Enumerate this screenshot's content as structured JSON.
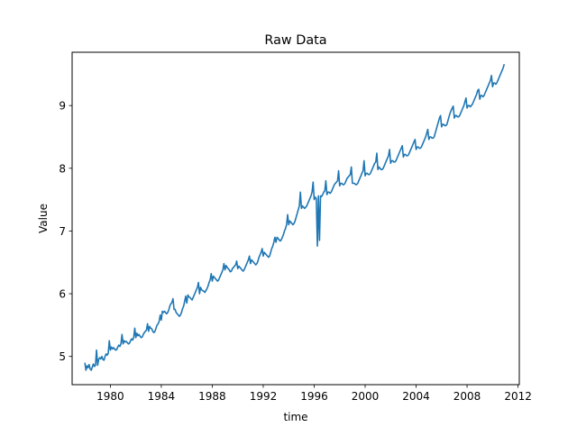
{
  "chart_data": {
    "type": "line",
    "title": "Raw Data",
    "xlabel": "time",
    "ylabel": "Value",
    "xlim": [
      1977.0,
      2012.1
    ],
    "ylim": [
      4.55,
      9.85
    ],
    "x_ticks": [
      1980,
      1984,
      1988,
      1992,
      1996,
      2000,
      2004,
      2008,
      2012
    ],
    "x_tick_labels": [
      "1980",
      "1984",
      "1988",
      "1992",
      "1996",
      "2000",
      "2004",
      "2008",
      "2012"
    ],
    "y_ticks": [
      5,
      6,
      7,
      8,
      9
    ],
    "y_tick_labels": [
      "5",
      "6",
      "7",
      "8",
      "9"
    ],
    "grid": false,
    "legend": "none",
    "x_unit": "year",
    "series": [
      {
        "color": "#1f77b4",
        "x_start": 1978.0,
        "x_step": 0.083333,
        "values": [
          4.9,
          4.78,
          4.85,
          4.82,
          4.87,
          4.8,
          4.78,
          4.83,
          4.88,
          4.84,
          4.86,
          5.1,
          4.86,
          4.95,
          4.98,
          4.96,
          5.0,
          4.95,
          4.94,
          5.0,
          5.04,
          5.02,
          5.05,
          5.25,
          5.1,
          5.15,
          5.12,
          5.14,
          5.12,
          5.1,
          5.11,
          5.15,
          5.18,
          5.16,
          5.2,
          5.35,
          5.2,
          5.25,
          5.23,
          5.24,
          5.22,
          5.2,
          5.21,
          5.25,
          5.28,
          5.26,
          5.3,
          5.45,
          5.3,
          5.37,
          5.33,
          5.35,
          5.32,
          5.3,
          5.31,
          5.35,
          5.38,
          5.4,
          5.42,
          5.52,
          5.4,
          5.48,
          5.45,
          5.44,
          5.4,
          5.38,
          5.4,
          5.45,
          5.5,
          5.52,
          5.56,
          5.66,
          5.58,
          5.72,
          5.7,
          5.72,
          5.7,
          5.68,
          5.7,
          5.74,
          5.8,
          5.84,
          5.86,
          5.92,
          5.75,
          5.75,
          5.7,
          5.68,
          5.66,
          5.64,
          5.66,
          5.7,
          5.76,
          5.8,
          5.88,
          5.96,
          5.85,
          5.98,
          5.95,
          5.94,
          5.92,
          5.9,
          5.94,
          5.98,
          6.02,
          6.06,
          6.1,
          6.18,
          6.0,
          6.1,
          6.06,
          6.05,
          6.04,
          6.02,
          6.05,
          6.08,
          6.12,
          6.18,
          6.22,
          6.32,
          6.2,
          6.28,
          6.26,
          6.24,
          6.22,
          6.2,
          6.22,
          6.26,
          6.3,
          6.34,
          6.38,
          6.48,
          6.38,
          6.45,
          6.42,
          6.4,
          6.38,
          6.35,
          6.36,
          6.4,
          6.42,
          6.44,
          6.46,
          6.52,
          6.4,
          6.44,
          6.42,
          6.4,
          6.38,
          6.36,
          6.38,
          6.42,
          6.46,
          6.5,
          6.54,
          6.6,
          6.48,
          6.54,
          6.52,
          6.5,
          6.48,
          6.46,
          6.48,
          6.52,
          6.58,
          6.62,
          6.66,
          6.72,
          6.6,
          6.66,
          6.64,
          6.62,
          6.6,
          6.58,
          6.6,
          6.66,
          6.72,
          6.76,
          6.82,
          6.9,
          6.82,
          6.9,
          6.88,
          6.86,
          6.84,
          6.86,
          6.9,
          6.94,
          7.0,
          7.04,
          7.1,
          7.26,
          7.1,
          7.16,
          7.14,
          7.12,
          7.1,
          7.12,
          7.16,
          7.22,
          7.28,
          7.34,
          7.4,
          7.62,
          7.36,
          7.4,
          7.38,
          7.36,
          7.38,
          7.4,
          7.44,
          7.48,
          7.52,
          7.56,
          7.62,
          7.78,
          7.5,
          7.54,
          7.52,
          6.76,
          7.56,
          6.85,
          7.56,
          7.55,
          7.58,
          7.62,
          7.64,
          7.8,
          7.58,
          7.62,
          7.62,
          7.6,
          7.62,
          7.66,
          7.7,
          7.74,
          7.76,
          7.78,
          7.8,
          7.96,
          7.72,
          7.76,
          7.76,
          7.74,
          7.74,
          7.76,
          7.8,
          7.84,
          7.86,
          7.88,
          7.9,
          8.02,
          7.76,
          7.76,
          7.76,
          7.74,
          7.74,
          7.76,
          7.8,
          7.84,
          7.88,
          7.92,
          7.96,
          8.12,
          7.88,
          7.92,
          7.92,
          7.9,
          7.9,
          7.92,
          7.96,
          8.0,
          8.04,
          8.08,
          8.1,
          8.24,
          7.98,
          8.02,
          8.0,
          7.98,
          7.98,
          8.0,
          8.04,
          8.08,
          8.12,
          8.16,
          8.2,
          8.3,
          8.08,
          8.12,
          8.12,
          8.1,
          8.1,
          8.12,
          8.16,
          8.2,
          8.24,
          8.28,
          8.32,
          8.36,
          8.18,
          8.22,
          8.22,
          8.2,
          8.2,
          8.22,
          8.26,
          8.3,
          8.34,
          8.38,
          8.42,
          8.46,
          8.3,
          8.34,
          8.34,
          8.32,
          8.32,
          8.34,
          8.38,
          8.42,
          8.46,
          8.5,
          8.56,
          8.62,
          8.46,
          8.5,
          8.5,
          8.48,
          8.48,
          8.5,
          8.56,
          8.62,
          8.68,
          8.74,
          8.8,
          8.84,
          8.66,
          8.7,
          8.7,
          8.68,
          8.68,
          8.7,
          8.76,
          8.82,
          8.88,
          8.92,
          8.96,
          8.99,
          8.8,
          8.84,
          8.84,
          8.82,
          8.82,
          8.84,
          8.88,
          8.92,
          8.96,
          9.0,
          9.06,
          9.12,
          8.96,
          9.0,
          9.0,
          8.98,
          9.0,
          9.02,
          9.06,
          9.1,
          9.14,
          9.18,
          9.24,
          9.26,
          9.1,
          9.16,
          9.16,
          9.14,
          9.16,
          9.2,
          9.24,
          9.28,
          9.32,
          9.36,
          9.4,
          9.48,
          9.3,
          9.36,
          9.36,
          9.34,
          9.36,
          9.4,
          9.44,
          9.48,
          9.52,
          9.56,
          9.6,
          9.66
        ]
      }
    ]
  }
}
